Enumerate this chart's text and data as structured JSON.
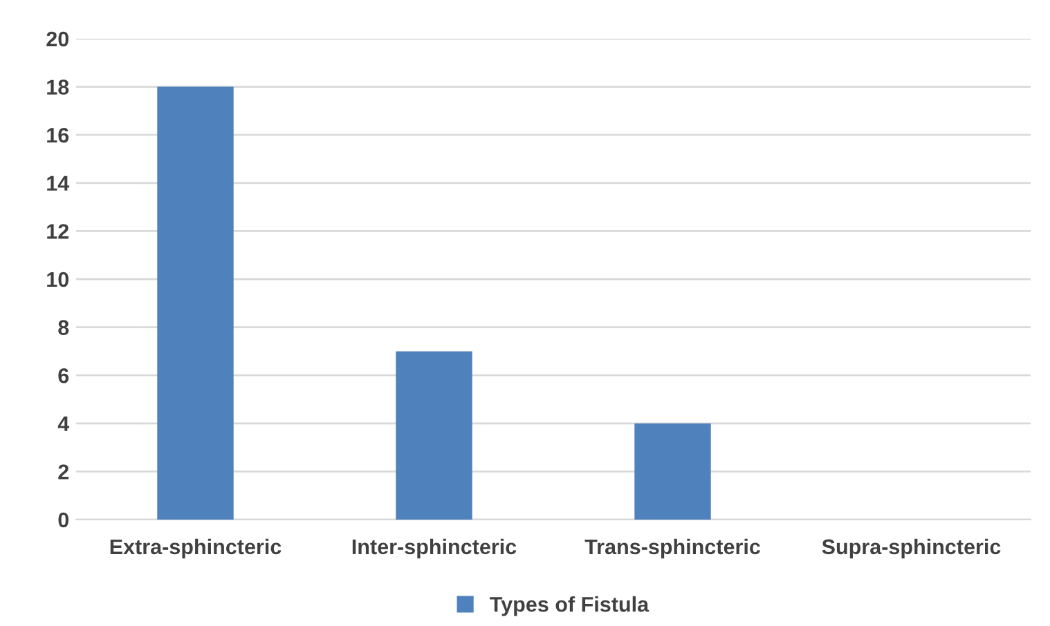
{
  "chart_data": {
    "type": "bar",
    "categories": [
      "Extra-sphincteric",
      "Inter-sphincteric",
      "Trans-sphincteric",
      "Supra-sphincteric"
    ],
    "series": [
      {
        "name": "Types of Fistula",
        "color": "#4f81bd",
        "values": [
          18,
          7,
          4,
          0
        ]
      }
    ],
    "ylim": [
      0,
      20
    ],
    "yticks": [
      0,
      2,
      4,
      6,
      8,
      10,
      12,
      14,
      16,
      18,
      20
    ],
    "grid": "y",
    "legend": "bottom"
  }
}
